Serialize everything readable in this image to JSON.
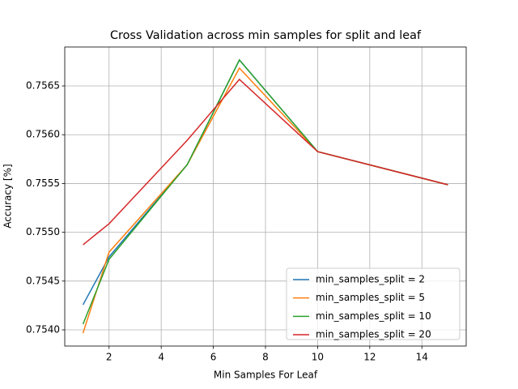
{
  "chart_data": {
    "type": "line",
    "title": "Cross Validation across min samples for split and leaf",
    "xlabel": "Min Samples For Leaf",
    "ylabel": "Accuracy [%]",
    "x": [
      1,
      2,
      5,
      7,
      10,
      15
    ],
    "series": [
      {
        "name": "min_samples_split = 2",
        "color": "#1f77b4",
        "values": [
          0.754257,
          0.754748,
          0.755694,
          0.756766,
          0.755827,
          0.755487
        ]
      },
      {
        "name": "min_samples_split = 5",
        "color": "#ff7f0e",
        "values": [
          0.753967,
          0.754797,
          0.755694,
          0.756683,
          0.755827,
          0.755487
        ]
      },
      {
        "name": "min_samples_split = 10",
        "color": "#2ca02c",
        "values": [
          0.754058,
          0.754723,
          0.755694,
          0.756766,
          0.755827,
          0.755487
        ]
      },
      {
        "name": "min_samples_split = 20",
        "color": "#d62728",
        "values": [
          0.754872,
          0.755088,
          0.755944,
          0.756567,
          0.755827,
          0.755487
        ]
      }
    ],
    "xlim": [
      0.3,
      15.7
    ],
    "xticks": [
      2,
      4,
      6,
      8,
      10,
      12,
      14
    ],
    "ylim": [
      0.753834,
      0.756899
    ],
    "yticks": [
      {
        "value": 0.754,
        "label": "0.7540"
      },
      0.7545,
      {
        "value": 0.755,
        "label": "0.7550"
      },
      0.7555,
      {
        "value": 0.756,
        "label": "0.7560"
      },
      0.7565
    ],
    "grid": true,
    "legend": "lower right"
  }
}
